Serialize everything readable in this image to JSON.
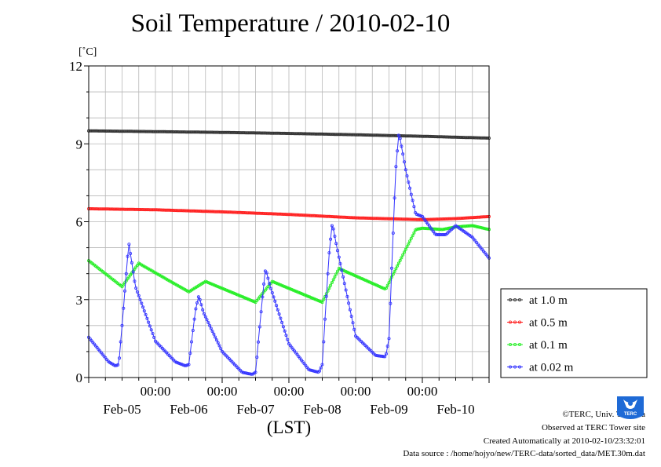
{
  "title": "Soil Temperature / 2010-02-10",
  "footer": {
    "copyright": "©TERC, Univ. Tsukuba",
    "observed": "Observed at TERC Tower site",
    "created": "Created Automatically at 2010-02-10/23:32:01",
    "source": "Data source : /home/hojyo/new/TERC-data/sorted_data/MET.30m.dat",
    "logo_text": "TERC"
  },
  "chart_data": {
    "type": "line",
    "title": "Soil Temperature / 2010-02-10",
    "ylabel": "[˚C]",
    "xlabel": "(LST)",
    "ylim": [
      0,
      12
    ],
    "yticks": [
      0,
      3,
      6,
      9,
      12
    ],
    "xlim_days": [
      0,
      6
    ],
    "midnight_positions": [
      1,
      2,
      3,
      4,
      5
    ],
    "midnight_labels": [
      "00:00",
      "00:00",
      "00:00",
      "00:00",
      "00:00"
    ],
    "date_labels": [
      "Feb-05",
      "Feb-06",
      "Feb-07",
      "Feb-08",
      "Feb-09",
      "Feb-10"
    ],
    "grid": true,
    "legend_position": "right",
    "series": [
      {
        "name": "at 1.0 m",
        "color": "#333333",
        "points": [
          [
            0,
            9.5
          ],
          [
            1,
            9.47
          ],
          [
            2,
            9.44
          ],
          [
            3,
            9.4
          ],
          [
            4,
            9.35
          ],
          [
            5,
            9.29
          ],
          [
            6,
            9.22
          ]
        ]
      },
      {
        "name": "at 0.5 m",
        "color": "#ff2020",
        "points": [
          [
            0,
            6.5
          ],
          [
            1,
            6.46
          ],
          [
            2,
            6.38
          ],
          [
            3,
            6.28
          ],
          [
            4,
            6.15
          ],
          [
            5,
            6.08
          ],
          [
            5.5,
            6.12
          ],
          [
            6,
            6.2
          ]
        ]
      },
      {
        "name": "at 0.1 m",
        "color": "#22ee22",
        "points": [
          [
            0,
            4.5
          ],
          [
            0.5,
            3.5
          ],
          [
            0.75,
            4.4
          ],
          [
            1.5,
            3.3
          ],
          [
            1.75,
            3.7
          ],
          [
            2.5,
            2.9
          ],
          [
            2.75,
            3.7
          ],
          [
            3.5,
            2.9
          ],
          [
            3.75,
            4.2
          ],
          [
            4.45,
            3.4
          ],
          [
            4.9,
            5.7
          ],
          [
            5.0,
            5.75
          ],
          [
            5.3,
            5.7
          ],
          [
            5.5,
            5.8
          ],
          [
            5.75,
            5.85
          ],
          [
            6,
            5.7
          ]
        ]
      },
      {
        "name": "at 0.02 m",
        "color": "#3333ff",
        "points": [
          [
            0,
            1.55
          ],
          [
            0.3,
            0.6
          ],
          [
            0.4,
            0.45
          ],
          [
            0.45,
            0.5
          ],
          [
            0.5,
            2.0
          ],
          [
            0.6,
            5.2
          ],
          [
            0.7,
            3.5
          ],
          [
            1.0,
            1.4
          ],
          [
            1.3,
            0.6
          ],
          [
            1.45,
            0.45
          ],
          [
            1.5,
            0.5
          ],
          [
            1.6,
            2.6
          ],
          [
            1.65,
            3.15
          ],
          [
            1.72,
            2.5
          ],
          [
            2.0,
            1.0
          ],
          [
            2.3,
            0.2
          ],
          [
            2.45,
            0.12
          ],
          [
            2.5,
            0.2
          ],
          [
            2.6,
            3.0
          ],
          [
            2.65,
            4.2
          ],
          [
            2.72,
            3.5
          ],
          [
            3.0,
            1.3
          ],
          [
            3.3,
            0.3
          ],
          [
            3.45,
            0.2
          ],
          [
            3.5,
            0.5
          ],
          [
            3.6,
            4.7
          ],
          [
            3.65,
            5.95
          ],
          [
            3.72,
            5.0
          ],
          [
            4.0,
            1.6
          ],
          [
            4.3,
            0.85
          ],
          [
            4.45,
            0.8
          ],
          [
            4.5,
            1.5
          ],
          [
            4.6,
            8.0
          ],
          [
            4.65,
            9.45
          ],
          [
            4.75,
            8.0
          ],
          [
            4.9,
            6.3
          ],
          [
            5.0,
            6.2
          ],
          [
            5.2,
            5.5
          ],
          [
            5.35,
            5.5
          ],
          [
            5.5,
            5.85
          ],
          [
            5.75,
            5.4
          ],
          [
            6.0,
            4.6
          ]
        ]
      }
    ]
  }
}
